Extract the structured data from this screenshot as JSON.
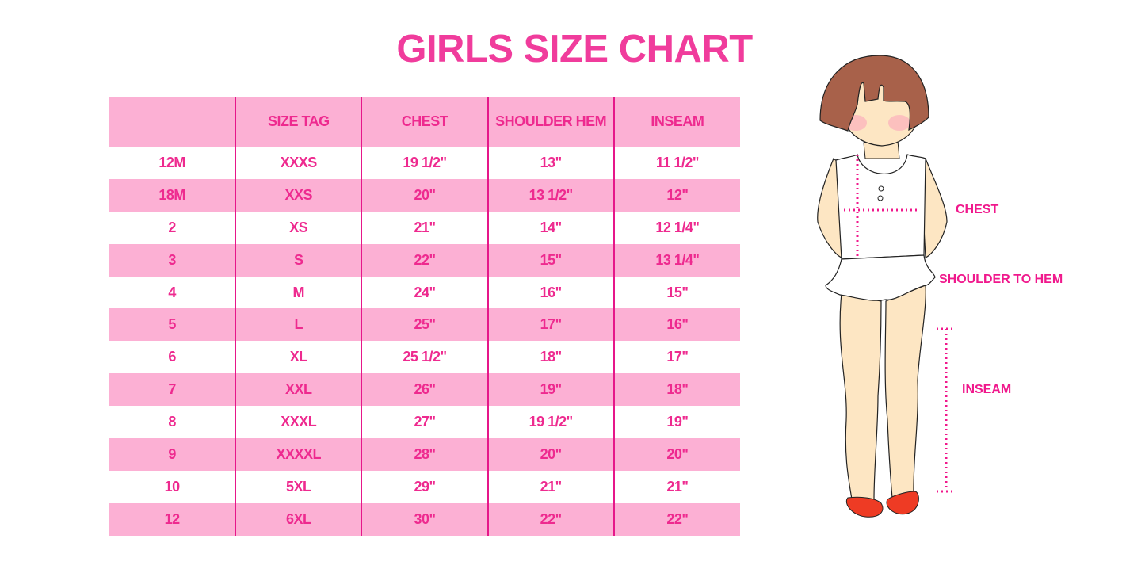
{
  "title": "GIRLS SIZE CHART",
  "table": {
    "headers": [
      "",
      "SIZE TAG",
      "CHEST",
      "SHOULDER HEM",
      "INSEAM"
    ],
    "rows": [
      [
        "12M",
        "XXXS",
        "19 1/2\"",
        "13\"",
        "11 1/2\""
      ],
      [
        "18M",
        "XXS",
        "20\"",
        "13 1/2\"",
        "12\""
      ],
      [
        "2",
        "XS",
        "21\"",
        "14\"",
        "12 1/4\""
      ],
      [
        "3",
        "S",
        "22\"",
        "15\"",
        "13 1/4\""
      ],
      [
        "4",
        "M",
        "24\"",
        "16\"",
        "15\""
      ],
      [
        "5",
        "L",
        "25\"",
        "17\"",
        "16\""
      ],
      [
        "6",
        "XL",
        "25 1/2\"",
        "18\"",
        "17\""
      ],
      [
        "7",
        "XXL",
        "26\"",
        "19\"",
        "18\""
      ],
      [
        "8",
        "XXXL",
        "27\"",
        "19 1/2\"",
        "19\""
      ],
      [
        "9",
        "XXXXL",
        "28\"",
        "20\"",
        "20\""
      ],
      [
        "10",
        "5XL",
        "29\"",
        "21\"",
        "21\""
      ],
      [
        "12",
        "6XL",
        "30\"",
        "22\"",
        "22\""
      ]
    ]
  },
  "illustration": {
    "labels": {
      "chest": "CHEST",
      "shoulder_to_hem": "SHOULDER TO HEM",
      "inseam": "INSEAM"
    }
  },
  "colors": {
    "accent": "#ee2a8f",
    "row_pink": "#fcb0d4",
    "divider": "#e6178a"
  }
}
